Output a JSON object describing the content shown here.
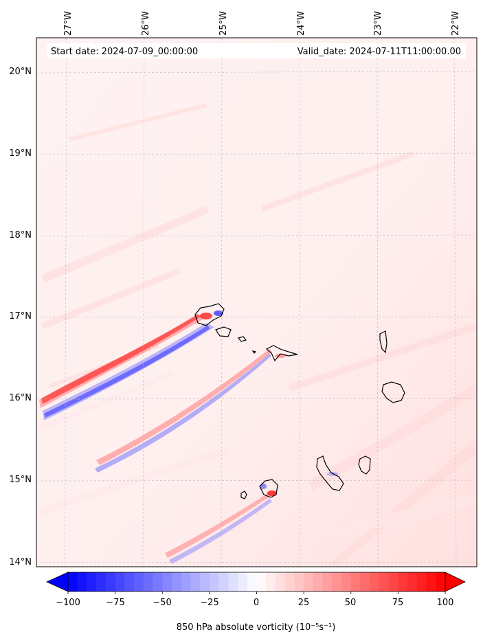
{
  "map": {
    "header_left": "Start date: 2024-07-09_00:00:00",
    "header_right": "Valid_date: 2024-07-11T11:00:00.00",
    "lon_labels": [
      "27°W",
      "26°W",
      "25°W",
      "24°W",
      "23°W",
      "22°W"
    ],
    "lat_labels": [
      "20°N",
      "19°N",
      "18°N",
      "17°N",
      "16°N",
      "15°N",
      "14°N"
    ],
    "extent": {
      "lon_min": -27.35,
      "lon_max": -21.75,
      "lat_min": 13.95,
      "lat_max": 20.42
    },
    "islands": [
      "Santo Antão",
      "São Vicente",
      "Santa Luzia",
      "São Nicolau",
      "Sal",
      "Boa Vista",
      "Maio",
      "Santiago",
      "Fogo",
      "Brava"
    ]
  },
  "colorbar": {
    "ticks": [
      "−100",
      "−75",
      "−50",
      "−25",
      "0",
      "25",
      "50",
      "75",
      "100"
    ],
    "title": "850 hPa absolute vorticity (10⁻⁵s⁻¹)",
    "min": -100,
    "max": 100,
    "neg_color": "#0000ff",
    "pos_color": "#ff0000",
    "mid_color": "#ffffff"
  }
}
